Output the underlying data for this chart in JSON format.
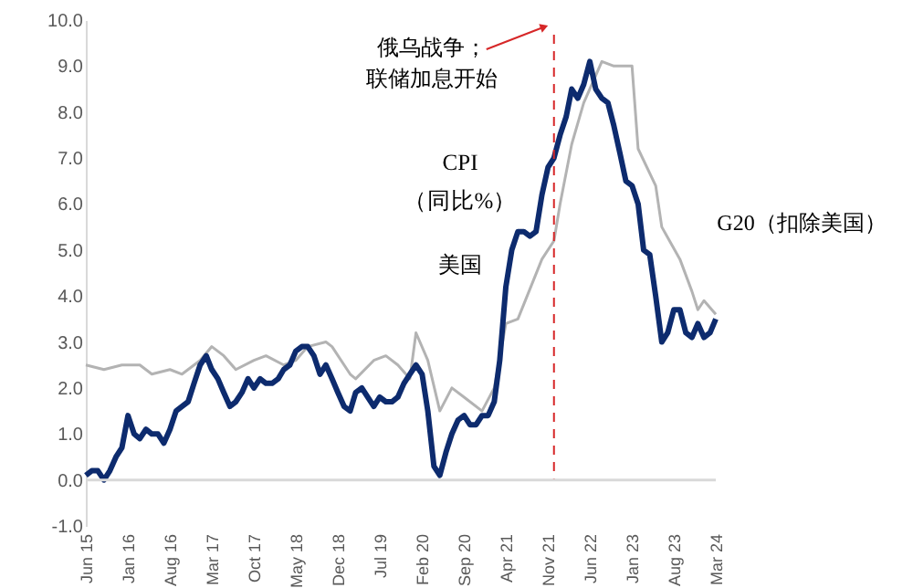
{
  "chart_data": {
    "type": "line",
    "x": [
      "2015-06",
      "2015-07",
      "2015-08",
      "2015-09",
      "2015-10",
      "2015-11",
      "2015-12",
      "2016-01",
      "2016-02",
      "2016-03",
      "2016-04",
      "2016-05",
      "2016-06",
      "2016-07",
      "2016-08",
      "2016-09",
      "2016-10",
      "2016-11",
      "2016-12",
      "2017-01",
      "2017-02",
      "2017-03",
      "2017-04",
      "2017-05",
      "2017-06",
      "2017-07",
      "2017-08",
      "2017-09",
      "2017-10",
      "2017-11",
      "2017-12",
      "2018-01",
      "2018-02",
      "2018-03",
      "2018-04",
      "2018-05",
      "2018-06",
      "2018-07",
      "2018-08",
      "2018-09",
      "2018-10",
      "2018-11",
      "2018-12",
      "2019-01",
      "2019-02",
      "2019-03",
      "2019-04",
      "2019-05",
      "2019-06",
      "2019-07",
      "2019-08",
      "2019-09",
      "2019-10",
      "2019-11",
      "2019-12",
      "2020-01",
      "2020-02",
      "2020-03",
      "2020-04",
      "2020-05",
      "2020-06",
      "2020-07",
      "2020-08",
      "2020-09",
      "2020-10",
      "2020-11",
      "2020-12",
      "2021-01",
      "2021-02",
      "2021-03",
      "2021-04",
      "2021-05",
      "2021-06",
      "2021-07",
      "2021-08",
      "2021-09",
      "2021-10",
      "2021-11",
      "2021-12",
      "2022-01",
      "2022-02",
      "2022-03",
      "2022-04",
      "2022-05",
      "2022-06",
      "2022-07",
      "2022-08",
      "2022-09",
      "2022-10",
      "2022-11",
      "2022-12",
      "2023-01",
      "2023-02",
      "2023-03",
      "2023-04",
      "2023-05",
      "2023-06",
      "2023-07",
      "2023-08",
      "2023-09",
      "2023-10",
      "2023-11",
      "2023-12",
      "2024-01",
      "2024-02",
      "2024-03"
    ],
    "series": [
      {
        "name": "G20（扣除美国）",
        "color": "#b3b3b3",
        "x": [
          "2015-06",
          "2015-09",
          "2015-12",
          "2016-03",
          "2016-05",
          "2016-08",
          "2016-10",
          "2017-01",
          "2017-03",
          "2017-05",
          "2017-07",
          "2017-10",
          "2017-12",
          "2018-03",
          "2018-05",
          "2018-07",
          "2018-10",
          "2018-11",
          "2019-02",
          "2019-03",
          "2019-06",
          "2019-08",
          "2019-10",
          "2019-12",
          "2020-01",
          "2020-03",
          "2020-05",
          "2020-07",
          "2020-09",
          "2020-12",
          "2021-02",
          "2021-04",
          "2021-06",
          "2021-10",
          "2021-12",
          "2022-01",
          "2022-03",
          "2022-05",
          "2022-08",
          "2022-10",
          "2023-01",
          "2023-02",
          "2023-05",
          "2023-06",
          "2023-09",
          "2023-11",
          "2023-12",
          "2024-01",
          "2024-03"
        ],
        "values": [
          2.5,
          2.4,
          2.5,
          2.5,
          2.3,
          2.4,
          2.3,
          2.6,
          2.9,
          2.7,
          2.4,
          2.6,
          2.7,
          2.5,
          2.6,
          2.9,
          3.0,
          2.9,
          2.3,
          2.2,
          2.6,
          2.7,
          2.5,
          2.2,
          3.2,
          2.6,
          1.5,
          2.0,
          1.8,
          1.5,
          2.0,
          3.4,
          3.5,
          4.8,
          5.2,
          6.0,
          7.3,
          8.2,
          9.1,
          9.0,
          9.0,
          7.2,
          6.4,
          5.5,
          4.8,
          4.1,
          3.7,
          3.9,
          3.6
        ]
      },
      {
        "name": "美国",
        "color": "#0d2b6e",
        "values": [
          0.1,
          0.2,
          0.2,
          0.0,
          0.2,
          0.5,
          0.7,
          1.4,
          1.0,
          0.9,
          1.1,
          1.0,
          1.0,
          0.8,
          1.1,
          1.5,
          1.6,
          1.7,
          2.1,
          2.5,
          2.7,
          2.4,
          2.2,
          1.9,
          1.6,
          1.7,
          1.9,
          2.2,
          2.0,
          2.2,
          2.1,
          2.1,
          2.2,
          2.4,
          2.5,
          2.8,
          2.9,
          2.9,
          2.7,
          2.3,
          2.5,
          2.2,
          1.9,
          1.6,
          1.5,
          1.9,
          2.0,
          1.8,
          1.6,
          1.8,
          1.7,
          1.7,
          1.8,
          2.1,
          2.3,
          2.5,
          2.3,
          1.5,
          0.3,
          0.1,
          0.6,
          1.0,
          1.3,
          1.4,
          1.2,
          1.2,
          1.4,
          1.4,
          1.7,
          2.6,
          4.2,
          5.0,
          5.4,
          5.4,
          5.3,
          5.4,
          6.2,
          6.8,
          7.0,
          7.5,
          7.9,
          8.5,
          8.3,
          8.6,
          9.1,
          8.5,
          8.3,
          8.2,
          7.7,
          7.1,
          6.5,
          6.4,
          6.0,
          5.0,
          4.9,
          4.0,
          3.0,
          3.2,
          3.7,
          3.7,
          3.2,
          3.1,
          3.4,
          3.1,
          3.2,
          3.5
        ]
      }
    ],
    "annotations": [
      "CPI",
      "（同比%）"
    ],
    "ref_lines": [
      {
        "axis": "x",
        "value": "2021-12",
        "label": "俄乌战争；联储加息开始",
        "color": "#d62728",
        "line_style": "dashed"
      },
      {
        "axis": "y",
        "value": 0,
        "color": "#d9d9d9",
        "line_style": "solid"
      }
    ],
    "xlim": [
      "2015-06",
      "2024-03"
    ],
    "xticks": [
      {
        "value": "2015-06",
        "label": "Jun 15"
      },
      {
        "value": "2016-01",
        "label": "Jan 16"
      },
      {
        "value": "2016-08",
        "label": "Aug 16"
      },
      {
        "value": "2017-03",
        "label": "Mar 17"
      },
      {
        "value": "2017-10",
        "label": "Oct 17"
      },
      {
        "value": "2018-05",
        "label": "May 18"
      },
      {
        "value": "2018-12",
        "label": "Dec 18"
      },
      {
        "value": "2019-07",
        "label": "Jul 19"
      },
      {
        "value": "2020-02",
        "label": "Feb 20"
      },
      {
        "value": "2020-09",
        "label": "Sep 20"
      },
      {
        "value": "2021-04",
        "label": "Apr 21"
      },
      {
        "value": "2021-11",
        "label": "Nov 21"
      },
      {
        "value": "2022-06",
        "label": "Jun 22"
      },
      {
        "value": "2023-01",
        "label": "Jan 23"
      },
      {
        "value": "2023-08",
        "label": "Aug 23"
      },
      {
        "value": "2024-03",
        "label": "Mar 24"
      }
    ],
    "ylim": [
      -1,
      10
    ],
    "yticks": [
      {
        "value": -1,
        "label": "-1.0"
      },
      {
        "value": 0,
        "label": "0.0"
      },
      {
        "value": 1,
        "label": "1.0"
      },
      {
        "value": 2,
        "label": "2.0"
      },
      {
        "value": 3,
        "label": "3.0"
      },
      {
        "value": 4,
        "label": "4.0"
      },
      {
        "value": 5,
        "label": "5.0"
      },
      {
        "value": 6,
        "label": "6.0"
      },
      {
        "value": 7,
        "label": "7.0"
      },
      {
        "value": 8,
        "label": "8.0"
      },
      {
        "value": 9,
        "label": "9.0"
      },
      {
        "value": 10,
        "label": "10.0"
      }
    ],
    "grid": false,
    "legend": false,
    "line_style": "solid",
    "marker": "none"
  }
}
